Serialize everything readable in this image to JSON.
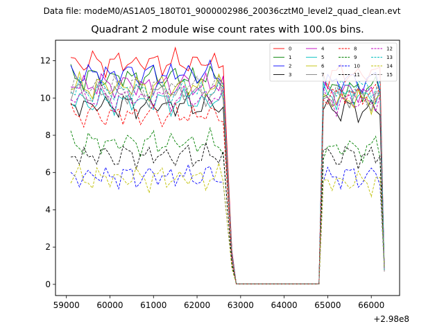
{
  "header": {
    "suptitle": "Data file: modeM0/AS1A05_180T01_9000002986_20036cztM0_level2_quad_clean.evt"
  },
  "chart_data": {
    "type": "line",
    "title": "Quadrant 2 module wise count rates with 100.0s bins.",
    "xlabel": "",
    "ylabel": "",
    "x_offset_label": "+2.98e8",
    "x_offset": 298000000,
    "xlim": [
      58750,
      66650
    ],
    "ylim": [
      -0.6,
      13.1
    ],
    "xticks": [
      59000,
      60000,
      61000,
      62000,
      63000,
      64000,
      65000,
      66000
    ],
    "yticks": [
      0,
      2,
      4,
      6,
      8,
      10,
      12
    ],
    "grid": false,
    "legend": {
      "placement": "top-right",
      "ncol": 4
    },
    "segments": [
      [
        59100,
        62900
      ],
      [
        64800,
        66300
      ]
    ],
    "series": [
      {
        "name": "0",
        "color": "#ff0000",
        "linestyle": "solid",
        "level1": 11.9,
        "level2": 11.3,
        "phase": 0.3
      },
      {
        "name": "1",
        "color": "#008000",
        "linestyle": "solid",
        "level1": 11.1,
        "level2": 10.5,
        "phase": 1.1
      },
      {
        "name": "2",
        "color": "#0000ff",
        "linestyle": "solid",
        "level1": 11.3,
        "level2": 10.9,
        "phase": 2.0
      },
      {
        "name": "3",
        "color": "#000000",
        "linestyle": "solid",
        "level1": 9.6,
        "level2": 9.4,
        "phase": 2.7
      },
      {
        "name": "4",
        "color": "#bf00bf",
        "linestyle": "solid",
        "level1": 10.7,
        "level2": 10.3,
        "phase": 3.5
      },
      {
        "name": "5",
        "color": "#00bfbf",
        "linestyle": "solid",
        "level1": 9.8,
        "level2": 10.1,
        "phase": 4.2
      },
      {
        "name": "6",
        "color": "#bfbf00",
        "linestyle": "solid",
        "level1": 10.6,
        "level2": 9.9,
        "phase": 5.0
      },
      {
        "name": "7",
        "color": "#808080",
        "linestyle": "solid",
        "level1": 10.2,
        "level2": 10.0,
        "phase": 5.7
      },
      {
        "name": "8",
        "color": "#ff0000",
        "linestyle": "dashed",
        "level1": 9.1,
        "level2": 10.2,
        "phase": 0.8
      },
      {
        "name": "9",
        "color": "#008000",
        "linestyle": "dashed",
        "level1": 7.6,
        "level2": 7.3,
        "phase": 1.6
      },
      {
        "name": "10",
        "color": "#0000ff",
        "linestyle": "dashed",
        "level1": 5.8,
        "level2": 5.8,
        "phase": 2.4
      },
      {
        "name": "11",
        "color": "#000000",
        "linestyle": "dashed",
        "level1": 6.9,
        "level2": 6.9,
        "phase": 3.1
      },
      {
        "name": "12",
        "color": "#bf00bf",
        "linestyle": "dashed",
        "level1": 10.0,
        "level2": 9.8,
        "phase": 3.9
      },
      {
        "name": "13",
        "color": "#00bfbf",
        "linestyle": "dashed",
        "level1": 10.4,
        "level2": 10.6,
        "phase": 4.6
      },
      {
        "name": "14",
        "color": "#bfbf00",
        "linestyle": "dashed",
        "level1": 5.7,
        "level2": 5.5,
        "phase": 5.4
      },
      {
        "name": "15",
        "color": "#808080",
        "linestyle": "dashed",
        "level1": 10.6,
        "level2": 10.1,
        "phase": 6.1
      }
    ]
  }
}
